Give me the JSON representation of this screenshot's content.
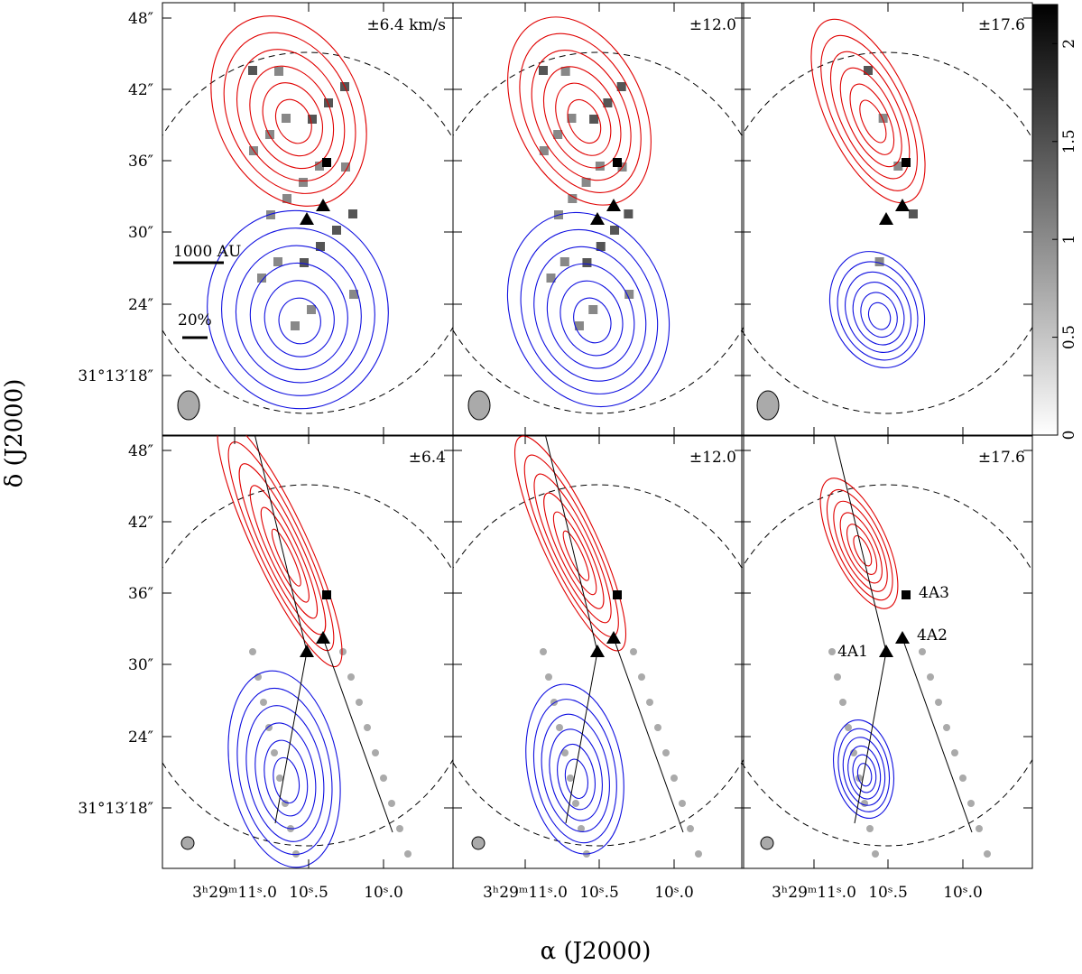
{
  "figure": {
    "x_label": "α (J2000)",
    "y_label": "δ (J2000)",
    "yticks": [
      "48″",
      "42″",
      "36″",
      "30″",
      "24″",
      "31°13′18″"
    ],
    "xticks": [
      "3ʰ29ᵐ11ˢ.0",
      "10ˢ.5",
      "10ˢ.0"
    ],
    "colorbar": {
      "lim": [
        0,
        2.2
      ],
      "ticks": [
        0,
        0.5,
        1,
        1.5,
        2
      ]
    },
    "panels": [
      {
        "label": "±6.4 km/s"
      },
      {
        "label": "±12.0"
      },
      {
        "label": "±17.6"
      },
      {
        "label": "±6.4"
      },
      {
        "label": "±12.0"
      },
      {
        "label": "±17.6"
      }
    ],
    "scale_bar": "1000 AU",
    "pol_scale": "20%",
    "sources": [
      "4A1",
      "4A2",
      "4A3"
    ]
  }
}
